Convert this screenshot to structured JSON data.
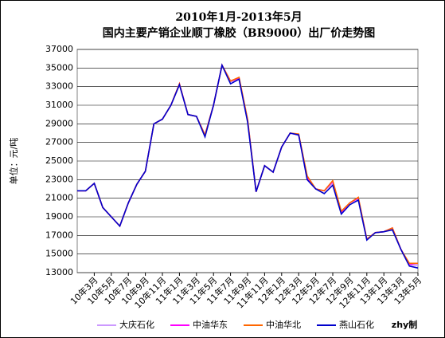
{
  "chart_data": {
    "type": "line",
    "title": "2010年1月-2013年5月",
    "subtitle": "国内主要产销企业顺丁橡胶（BR9000）出厂价走势图",
    "y_label": "单位：元/吨",
    "annotation": "zhy制",
    "categories": [
      null,
      null,
      "10年3月",
      null,
      "10年5月",
      null,
      "10年7月",
      null,
      "10年9月",
      null,
      "10年11月",
      null,
      "11年1月",
      null,
      "11年3月",
      null,
      "11年5月",
      null,
      "11年7月",
      null,
      "11年9月",
      null,
      "11年11月",
      null,
      "12年1月",
      null,
      "12年3月",
      null,
      "12年5月",
      null,
      "12年7月",
      null,
      "12年9月",
      null,
      "12年11月",
      null,
      "13年1月",
      null,
      "13年3月",
      null,
      "13年5月"
    ],
    "series": [
      {
        "name": "大庆石化",
        "color": "#cc99ff",
        "values": [
          21800,
          21800,
          22600,
          20000,
          19000,
          18000,
          20500,
          22500,
          23900,
          29000,
          29500,
          31000,
          33200,
          30000,
          29800,
          27800,
          31000,
          35300,
          33500,
          33800,
          29400,
          21700,
          24500,
          23800,
          26500,
          28000,
          27800,
          23000,
          22000,
          21800,
          22600,
          19500,
          20500,
          21000,
          16600,
          17300,
          17400,
          17700,
          15500,
          13800,
          13800
        ]
      },
      {
        "name": "中油华东",
        "color": "#ff00ff",
        "values": [
          21800,
          21800,
          22600,
          20000,
          19000,
          18000,
          20500,
          22500,
          23900,
          29000,
          29500,
          31000,
          33300,
          30000,
          29800,
          27800,
          31000,
          35300,
          33600,
          33900,
          29400,
          21700,
          24500,
          23800,
          26500,
          28000,
          27800,
          23200,
          22000,
          21800,
          22800,
          19500,
          20500,
          21000,
          16600,
          17300,
          17400,
          17800,
          15500,
          13900,
          14000
        ]
      },
      {
        "name": "中油华北",
        "color": "#ff6600",
        "values": [
          21800,
          21800,
          22600,
          20000,
          19000,
          18000,
          20500,
          22500,
          23900,
          29000,
          29500,
          31000,
          33300,
          30000,
          29800,
          27800,
          31000,
          35300,
          33600,
          34000,
          29500,
          21700,
          24500,
          23800,
          26500,
          28000,
          27900,
          23400,
          22000,
          21800,
          22900,
          19600,
          20500,
          21100,
          16600,
          17300,
          17400,
          17800,
          15500,
          14000,
          14000
        ]
      },
      {
        "name": "燕山石化",
        "color": "#0000cc",
        "values": [
          21800,
          21800,
          22600,
          20000,
          19000,
          18000,
          20500,
          22500,
          23900,
          29000,
          29500,
          31000,
          33200,
          30000,
          29800,
          27600,
          31000,
          35300,
          33300,
          33800,
          29200,
          21700,
          24500,
          23800,
          26500,
          28000,
          27800,
          23000,
          22000,
          21500,
          22400,
          19300,
          20300,
          20800,
          16500,
          17300,
          17400,
          17600,
          15500,
          13700,
          13500
        ]
      }
    ],
    "ylim": [
      13000,
      37000
    ],
    "yticks": [
      13000,
      15000,
      17000,
      19000,
      21000,
      23000,
      25000,
      27000,
      29000,
      31000,
      33000,
      35000,
      37000
    ],
    "grid": true
  }
}
